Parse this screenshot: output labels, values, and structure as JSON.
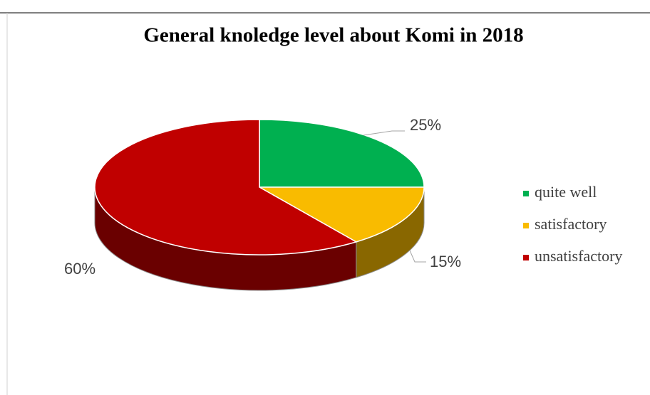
{
  "chart_data": {
    "type": "pie3d",
    "title": "General knoledge level about Komi in 2018",
    "categories": [
      "quite well",
      "satisfactory",
      "unsatisfactory"
    ],
    "values": [
      25,
      15,
      60
    ],
    "value_labels": [
      "25%",
      "15%",
      "60%"
    ],
    "colors": [
      "#00b050",
      "#f9bb00",
      "#c00000"
    ],
    "legend": "right"
  }
}
